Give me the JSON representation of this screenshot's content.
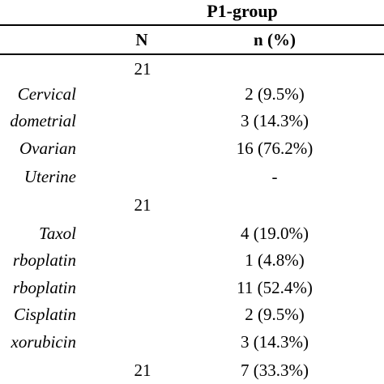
{
  "table": {
    "group_title": "P1-group",
    "col_N": "N",
    "col_n": "n (%)",
    "rows": [
      {
        "label": "",
        "N": "21",
        "n": ""
      },
      {
        "label": "Cervical",
        "N": "",
        "n": "2 (9.5%)"
      },
      {
        "label": "dometrial",
        "N": "",
        "n": "3 (14.3%)"
      },
      {
        "label": "Ovarian",
        "N": "",
        "n": "16 (76.2%)"
      },
      {
        "label": "Uterine",
        "N": "",
        "n": "-"
      },
      {
        "label": "",
        "N": "21",
        "n": ""
      },
      {
        "label": "Taxol",
        "N": "",
        "n": "4 (19.0%)"
      },
      {
        "label": "rboplatin",
        "N": "",
        "n": "1 (4.8%)"
      },
      {
        "label": "rboplatin",
        "N": "",
        "n": "11 (52.4%)"
      },
      {
        "label": "Cisplatin",
        "N": "",
        "n": "2 (9.5%)"
      },
      {
        "label": "xorubicin",
        "N": "",
        "n": "3 (14.3%)"
      },
      {
        "label": "",
        "N": "21",
        "n": "7 (33.3%)"
      }
    ]
  }
}
